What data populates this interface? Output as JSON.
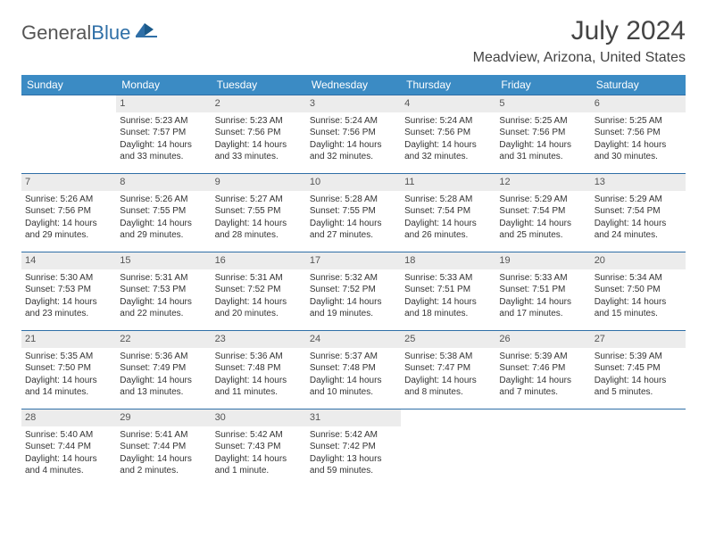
{
  "logo": {
    "text1": "General",
    "text2": "Blue"
  },
  "title": "July 2024",
  "location": "Meadview, Arizona, United States",
  "weekdays": [
    "Sunday",
    "Monday",
    "Tuesday",
    "Wednesday",
    "Thursday",
    "Friday",
    "Saturday"
  ],
  "colors": {
    "header_bg": "#3b8bc4",
    "rule": "#2f6fa7",
    "daynum_bg": "#ececec"
  },
  "start_weekday": 1,
  "days": [
    {
      "n": "1",
      "sr": "5:23 AM",
      "ss": "7:57 PM",
      "dl": "14 hours and 33 minutes."
    },
    {
      "n": "2",
      "sr": "5:23 AM",
      "ss": "7:56 PM",
      "dl": "14 hours and 33 minutes."
    },
    {
      "n": "3",
      "sr": "5:24 AM",
      "ss": "7:56 PM",
      "dl": "14 hours and 32 minutes."
    },
    {
      "n": "4",
      "sr": "5:24 AM",
      "ss": "7:56 PM",
      "dl": "14 hours and 32 minutes."
    },
    {
      "n": "5",
      "sr": "5:25 AM",
      "ss": "7:56 PM",
      "dl": "14 hours and 31 minutes."
    },
    {
      "n": "6",
      "sr": "5:25 AM",
      "ss": "7:56 PM",
      "dl": "14 hours and 30 minutes."
    },
    {
      "n": "7",
      "sr": "5:26 AM",
      "ss": "7:56 PM",
      "dl": "14 hours and 29 minutes."
    },
    {
      "n": "8",
      "sr": "5:26 AM",
      "ss": "7:55 PM",
      "dl": "14 hours and 29 minutes."
    },
    {
      "n": "9",
      "sr": "5:27 AM",
      "ss": "7:55 PM",
      "dl": "14 hours and 28 minutes."
    },
    {
      "n": "10",
      "sr": "5:28 AM",
      "ss": "7:55 PM",
      "dl": "14 hours and 27 minutes."
    },
    {
      "n": "11",
      "sr": "5:28 AM",
      "ss": "7:54 PM",
      "dl": "14 hours and 26 minutes."
    },
    {
      "n": "12",
      "sr": "5:29 AM",
      "ss": "7:54 PM",
      "dl": "14 hours and 25 minutes."
    },
    {
      "n": "13",
      "sr": "5:29 AM",
      "ss": "7:54 PM",
      "dl": "14 hours and 24 minutes."
    },
    {
      "n": "14",
      "sr": "5:30 AM",
      "ss": "7:53 PM",
      "dl": "14 hours and 23 minutes."
    },
    {
      "n": "15",
      "sr": "5:31 AM",
      "ss": "7:53 PM",
      "dl": "14 hours and 22 minutes."
    },
    {
      "n": "16",
      "sr": "5:31 AM",
      "ss": "7:52 PM",
      "dl": "14 hours and 20 minutes."
    },
    {
      "n": "17",
      "sr": "5:32 AM",
      "ss": "7:52 PM",
      "dl": "14 hours and 19 minutes."
    },
    {
      "n": "18",
      "sr": "5:33 AM",
      "ss": "7:51 PM",
      "dl": "14 hours and 18 minutes."
    },
    {
      "n": "19",
      "sr": "5:33 AM",
      "ss": "7:51 PM",
      "dl": "14 hours and 17 minutes."
    },
    {
      "n": "20",
      "sr": "5:34 AM",
      "ss": "7:50 PM",
      "dl": "14 hours and 15 minutes."
    },
    {
      "n": "21",
      "sr": "5:35 AM",
      "ss": "7:50 PM",
      "dl": "14 hours and 14 minutes."
    },
    {
      "n": "22",
      "sr": "5:36 AM",
      "ss": "7:49 PM",
      "dl": "14 hours and 13 minutes."
    },
    {
      "n": "23",
      "sr": "5:36 AM",
      "ss": "7:48 PM",
      "dl": "14 hours and 11 minutes."
    },
    {
      "n": "24",
      "sr": "5:37 AM",
      "ss": "7:48 PM",
      "dl": "14 hours and 10 minutes."
    },
    {
      "n": "25",
      "sr": "5:38 AM",
      "ss": "7:47 PM",
      "dl": "14 hours and 8 minutes."
    },
    {
      "n": "26",
      "sr": "5:39 AM",
      "ss": "7:46 PM",
      "dl": "14 hours and 7 minutes."
    },
    {
      "n": "27",
      "sr": "5:39 AM",
      "ss": "7:45 PM",
      "dl": "14 hours and 5 minutes."
    },
    {
      "n": "28",
      "sr": "5:40 AM",
      "ss": "7:44 PM",
      "dl": "14 hours and 4 minutes."
    },
    {
      "n": "29",
      "sr": "5:41 AM",
      "ss": "7:44 PM",
      "dl": "14 hours and 2 minutes."
    },
    {
      "n": "30",
      "sr": "5:42 AM",
      "ss": "7:43 PM",
      "dl": "14 hours and 1 minute."
    },
    {
      "n": "31",
      "sr": "5:42 AM",
      "ss": "7:42 PM",
      "dl": "13 hours and 59 minutes."
    }
  ]
}
